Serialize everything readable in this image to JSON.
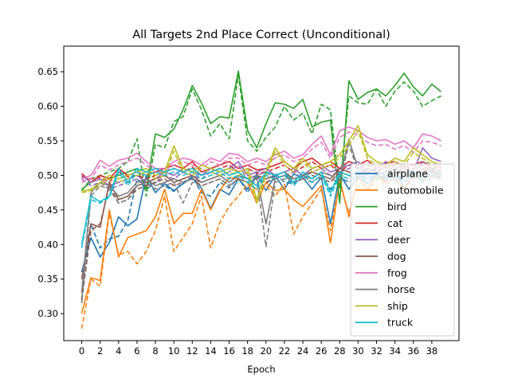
{
  "chart_data": {
    "type": "line",
    "title": "All Targets 2nd Place Correct (Unconditional)",
    "xlabel": "Epoch",
    "ylabel": "",
    "xlim": [
      -1.95,
      40.95
    ],
    "ylim": [
      0.261,
      0.687
    ],
    "xticks": [
      0,
      2,
      4,
      6,
      8,
      10,
      12,
      14,
      16,
      18,
      20,
      22,
      24,
      26,
      28,
      30,
      32,
      34,
      36,
      38
    ],
    "yticks": [
      0.3,
      0.35,
      0.4,
      0.45,
      0.5,
      0.55,
      0.6,
      0.65
    ],
    "grid": false,
    "legend_position": "lower-right",
    "x": [
      0,
      1,
      2,
      3,
      4,
      5,
      6,
      7,
      8,
      9,
      10,
      11,
      12,
      13,
      14,
      15,
      16,
      17,
      18,
      19,
      20,
      21,
      22,
      23,
      24,
      25,
      26,
      27,
      28,
      29,
      30,
      31,
      32,
      33,
      34,
      35,
      36,
      37,
      38,
      39
    ],
    "series": [
      {
        "name": "airplane",
        "color": "#1f77b4",
        "style": "solid",
        "values": [
          0.36,
          0.41,
          0.382,
          0.403,
          0.44,
          0.427,
          0.437,
          0.5,
          0.475,
          0.488,
          0.478,
          0.488,
          0.497,
          0.482,
          0.452,
          0.48,
          0.472,
          0.495,
          0.48,
          0.502,
          0.478,
          0.5,
          0.48,
          0.502,
          0.497,
          0.48,
          0.497,
          0.43,
          0.502,
          0.48,
          0.498,
          0.488,
          0.502,
          0.492,
          0.508,
          0.482,
          0.5,
          0.492,
          0.508,
          0.502
        ]
      },
      {
        "name": "",
        "color": "#1f77b4",
        "style": "dashed",
        "values": [
          0.32,
          0.43,
          0.395,
          0.408,
          0.412,
          0.435,
          0.495,
          0.48,
          0.49,
          0.485,
          0.477,
          0.49,
          0.498,
          0.475,
          0.47,
          0.49,
          0.482,
          0.497,
          0.475,
          0.498,
          0.488,
          0.503,
          0.49,
          0.488,
          0.5,
          0.49,
          0.5,
          0.48,
          0.497,
          0.49,
          0.5,
          0.495,
          0.5,
          0.497,
          0.505,
          0.49,
          0.5,
          0.495,
          0.5,
          0.498
        ]
      },
      {
        "name": "automobile",
        "color": "#ff7f0e",
        "style": "solid",
        "values": [
          0.3,
          0.352,
          0.348,
          0.45,
          0.382,
          0.41,
          0.415,
          0.42,
          0.44,
          0.48,
          0.43,
          0.445,
          0.445,
          0.48,
          0.45,
          0.478,
          0.497,
          0.495,
          0.49,
          0.46,
          0.49,
          0.478,
          0.48,
          0.465,
          0.455,
          0.47,
          0.485,
          0.402,
          0.495,
          0.44,
          0.497,
          0.48,
          0.5,
          0.49,
          0.495,
          0.48,
          0.5,
          0.497,
          0.5,
          0.498
        ]
      },
      {
        "name": "",
        "color": "#ff7f0e",
        "style": "dashed",
        "values": [
          0.278,
          0.35,
          0.34,
          0.445,
          0.385,
          0.39,
          0.372,
          0.39,
          0.42,
          0.47,
          0.39,
          0.41,
          0.43,
          0.47,
          0.395,
          0.432,
          0.455,
          0.47,
          0.488,
          0.48,
          0.485,
          0.47,
          0.488,
          0.415,
          0.44,
          0.46,
          0.48,
          0.42,
          0.49,
          0.445,
          0.497,
          0.478,
          0.495,
          0.487,
          0.5,
          0.478,
          0.5,
          0.492,
          0.498,
          0.495
        ]
      },
      {
        "name": "bird",
        "color": "#2ca02c",
        "style": "solid",
        "values": [
          0.48,
          0.49,
          0.5,
          0.495,
          0.5,
          0.505,
          0.51,
          0.48,
          0.56,
          0.555,
          0.567,
          0.595,
          0.63,
          0.605,
          0.575,
          0.585,
          0.583,
          0.651,
          0.565,
          0.54,
          0.575,
          0.605,
          0.603,
          0.597,
          0.61,
          0.57,
          0.577,
          0.58,
          0.46,
          0.637,
          0.61,
          0.62,
          0.625,
          0.615,
          0.63,
          0.648,
          0.628,
          0.615,
          0.632,
          0.621
        ]
      },
      {
        "name": "",
        "color": "#2ca02c",
        "style": "dashed",
        "values": [
          0.478,
          0.495,
          0.5,
          0.505,
          0.51,
          0.52,
          0.553,
          0.47,
          0.545,
          0.54,
          0.578,
          0.585,
          0.625,
          0.595,
          0.557,
          0.575,
          0.553,
          0.645,
          0.55,
          0.535,
          0.555,
          0.57,
          0.6,
          0.58,
          0.59,
          0.56,
          0.603,
          0.595,
          0.48,
          0.615,
          0.605,
          0.603,
          0.625,
          0.6,
          0.622,
          0.635,
          0.622,
          0.6,
          0.608,
          0.615
        ]
      },
      {
        "name": "cat",
        "color": "#d62728",
        "style": "solid",
        "values": [
          0.503,
          0.49,
          0.5,
          0.495,
          0.51,
          0.5,
          0.505,
          0.5,
          0.505,
          0.51,
          0.515,
          0.51,
          0.52,
          0.505,
          0.51,
          0.515,
          0.52,
          0.51,
          0.515,
          0.508,
          0.51,
          0.515,
          0.52,
          0.51,
          0.52,
          0.525,
          0.515,
          0.52,
          0.51,
          0.52,
          0.515,
          0.522,
          0.51,
          0.518,
          0.52,
          0.512,
          0.515,
          0.52,
          0.51,
          0.512
        ]
      },
      {
        "name": "",
        "color": "#d62728",
        "style": "dashed",
        "values": [
          0.498,
          0.495,
          0.497,
          0.49,
          0.505,
          0.498,
          0.5,
          0.495,
          0.5,
          0.505,
          0.51,
          0.505,
          0.512,
          0.5,
          0.505,
          0.51,
          0.515,
          0.505,
          0.51,
          0.503,
          0.505,
          0.51,
          0.515,
          0.505,
          0.512,
          0.52,
          0.51,
          0.515,
          0.505,
          0.515,
          0.51,
          0.517,
          0.505,
          0.512,
          0.515,
          0.508,
          0.51,
          0.515,
          0.505,
          0.508
        ]
      },
      {
        "name": "deer",
        "color": "#9467bd",
        "style": "solid",
        "values": [
          0.5,
          0.49,
          0.495,
          0.485,
          0.49,
          0.495,
          0.5,
          0.49,
          0.495,
          0.505,
          0.5,
          0.51,
          0.505,
          0.5,
          0.51,
          0.505,
          0.51,
          0.52,
          0.5,
          0.505,
          0.51,
          0.5,
          0.505,
          0.51,
          0.5,
          0.51,
          0.515,
          0.505,
          0.51,
          0.515,
          0.52,
          0.505,
          0.51,
          0.52,
          0.51,
          0.515,
          0.505,
          0.54,
          0.525,
          0.52
        ]
      },
      {
        "name": "",
        "color": "#9467bd",
        "style": "dashed",
        "values": [
          0.495,
          0.485,
          0.49,
          0.48,
          0.485,
          0.49,
          0.495,
          0.485,
          0.49,
          0.5,
          0.495,
          0.505,
          0.5,
          0.495,
          0.505,
          0.5,
          0.505,
          0.515,
          0.495,
          0.5,
          0.505,
          0.495,
          0.5,
          0.505,
          0.495,
          0.505,
          0.51,
          0.5,
          0.505,
          0.51,
          0.515,
          0.5,
          0.505,
          0.515,
          0.505,
          0.51,
          0.5,
          0.52,
          0.515,
          0.515
        ]
      },
      {
        "name": "dog",
        "color": "#8c564b",
        "style": "solid",
        "values": [
          0.35,
          0.43,
          0.425,
          0.49,
          0.465,
          0.47,
          0.485,
          0.49,
          0.495,
          0.5,
          0.49,
          0.495,
          0.5,
          0.49,
          0.495,
          0.5,
          0.49,
          0.5,
          0.495,
          0.5,
          0.495,
          0.5,
          0.505,
          0.495,
          0.5,
          0.505,
          0.5,
          0.495,
          0.51,
          0.505,
          0.5,
          0.51,
          0.505,
          0.5,
          0.51,
          0.505,
          0.5,
          0.51,
          0.505,
          0.5
        ]
      },
      {
        "name": "",
        "color": "#8c564b",
        "style": "dashed",
        "values": [
          0.32,
          0.42,
          0.43,
          0.485,
          0.46,
          0.465,
          0.48,
          0.485,
          0.49,
          0.495,
          0.485,
          0.49,
          0.495,
          0.485,
          0.49,
          0.495,
          0.485,
          0.495,
          0.49,
          0.495,
          0.49,
          0.495,
          0.5,
          0.49,
          0.495,
          0.5,
          0.495,
          0.49,
          0.505,
          0.5,
          0.495,
          0.505,
          0.5,
          0.495,
          0.505,
          0.5,
          0.495,
          0.505,
          0.5,
          0.495
        ]
      },
      {
        "name": "frog",
        "color": "#e377c2",
        "style": "solid",
        "values": [
          0.495,
          0.5,
          0.522,
          0.513,
          0.522,
          0.525,
          0.532,
          0.52,
          0.51,
          0.51,
          0.52,
          0.525,
          0.522,
          0.515,
          0.525,
          0.52,
          0.532,
          0.53,
          0.52,
          0.525,
          0.52,
          0.53,
          0.535,
          0.525,
          0.53,
          0.545,
          0.557,
          0.53,
          0.565,
          0.57,
          0.565,
          0.555,
          0.55,
          0.552,
          0.545,
          0.55,
          0.54,
          0.56,
          0.557,
          0.55
        ]
      },
      {
        "name": "",
        "color": "#e377c2",
        "style": "dashed",
        "values": [
          0.49,
          0.495,
          0.515,
          0.508,
          0.515,
          0.52,
          0.525,
          0.515,
          0.505,
          0.505,
          0.515,
          0.52,
          0.515,
          0.51,
          0.52,
          0.515,
          0.525,
          0.525,
          0.515,
          0.52,
          0.515,
          0.525,
          0.53,
          0.52,
          0.525,
          0.538,
          0.548,
          0.525,
          0.555,
          0.563,
          0.558,
          0.548,
          0.543,
          0.545,
          0.538,
          0.543,
          0.533,
          0.55,
          0.548,
          0.543
        ]
      },
      {
        "name": "horse",
        "color": "#7f7f7f",
        "style": "solid",
        "values": [
          0.33,
          0.475,
          0.49,
          0.485,
          0.47,
          0.475,
          0.49,
          0.495,
          0.485,
          0.49,
          0.495,
          0.49,
          0.495,
          0.49,
          0.495,
          0.5,
          0.49,
          0.5,
          0.495,
          0.5,
          0.43,
          0.495,
          0.5,
          0.495,
          0.5,
          0.495,
          0.505,
          0.5,
          0.495,
          0.552,
          0.51,
          0.505,
          0.5,
          0.505,
          0.51,
          0.505,
          0.5,
          0.505,
          0.51,
          0.5
        ]
      },
      {
        "name": "",
        "color": "#7f7f7f",
        "style": "dashed",
        "values": [
          0.315,
          0.47,
          0.485,
          0.48,
          0.46,
          0.465,
          0.485,
          0.49,
          0.48,
          0.485,
          0.49,
          0.46,
          0.49,
          0.485,
          0.49,
          0.495,
          0.485,
          0.495,
          0.49,
          0.495,
          0.397,
          0.49,
          0.495,
          0.49,
          0.495,
          0.49,
          0.5,
          0.495,
          0.49,
          0.545,
          0.505,
          0.5,
          0.495,
          0.5,
          0.505,
          0.5,
          0.495,
          0.5,
          0.505,
          0.495
        ]
      },
      {
        "name": "ship",
        "color": "#bcbd22",
        "style": "solid",
        "values": [
          0.477,
          0.48,
          0.49,
          0.5,
          0.495,
          0.5,
          0.505,
          0.51,
          0.5,
          0.505,
          0.543,
          0.51,
          0.505,
          0.515,
          0.51,
          0.505,
          0.51,
          0.505,
          0.51,
          0.465,
          0.505,
          0.54,
          0.52,
          0.51,
          0.525,
          0.51,
          0.515,
          0.52,
          0.53,
          0.55,
          0.572,
          0.53,
          0.52,
          0.515,
          0.525,
          0.52,
          0.54,
          0.53,
          0.52,
          0.515
        ]
      },
      {
        "name": "",
        "color": "#bcbd22",
        "style": "dashed",
        "values": [
          0.475,
          0.478,
          0.485,
          0.495,
          0.49,
          0.495,
          0.5,
          0.505,
          0.495,
          0.5,
          0.535,
          0.505,
          0.5,
          0.51,
          0.505,
          0.5,
          0.505,
          0.5,
          0.505,
          0.46,
          0.5,
          0.535,
          0.515,
          0.505,
          0.52,
          0.505,
          0.51,
          0.515,
          0.525,
          0.543,
          0.565,
          0.525,
          0.515,
          0.51,
          0.52,
          0.515,
          0.533,
          0.525,
          0.515,
          0.51
        ]
      },
      {
        "name": "truck",
        "color": "#17becf",
        "style": "solid",
        "values": [
          0.4,
          0.47,
          0.462,
          0.47,
          0.51,
          0.49,
          0.51,
          0.505,
          0.51,
          0.505,
          0.51,
          0.505,
          0.51,
          0.5,
          0.505,
          0.51,
          0.5,
          0.505,
          0.495,
          0.485,
          0.505,
          0.5,
          0.505,
          0.49,
          0.505,
          0.495,
          0.505,
          0.475,
          0.505,
          0.5,
          0.505,
          0.495,
          0.5,
          0.505,
          0.495,
          0.5,
          0.505,
          0.495,
          0.5,
          0.505
        ]
      },
      {
        "name": "",
        "color": "#17becf",
        "style": "dashed",
        "values": [
          0.395,
          0.465,
          0.46,
          0.468,
          0.505,
          0.485,
          0.505,
          0.5,
          0.505,
          0.5,
          0.505,
          0.5,
          0.505,
          0.495,
          0.5,
          0.505,
          0.495,
          0.5,
          0.49,
          0.48,
          0.5,
          0.495,
          0.5,
          0.485,
          0.5,
          0.49,
          0.5,
          0.47,
          0.5,
          0.495,
          0.5,
          0.49,
          0.495,
          0.5,
          0.49,
          0.495,
          0.5,
          0.49,
          0.495,
          0.5
        ]
      }
    ]
  }
}
